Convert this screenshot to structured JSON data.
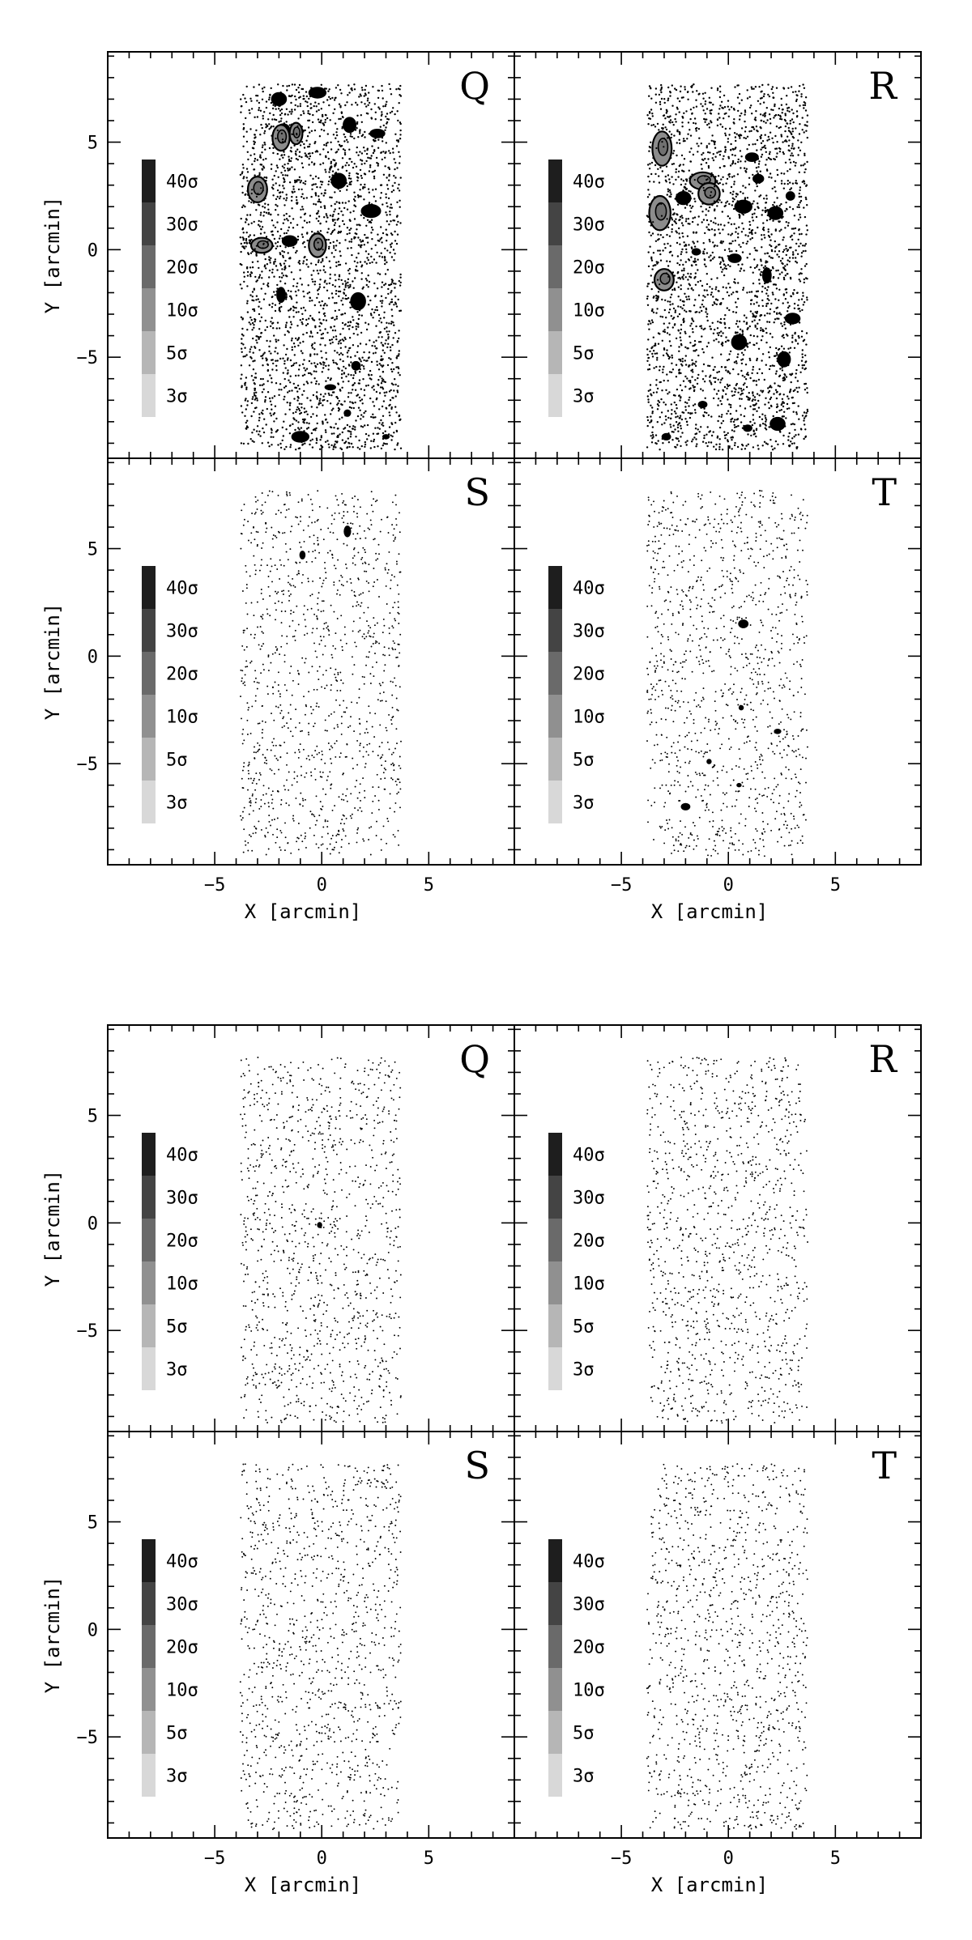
{
  "figure": {
    "colors": {
      "frame": "#000000",
      "dots": "#000000",
      "contour_fill": "#8c8c8c",
      "contour_line": "#000000"
    }
  },
  "chart_data": [
    {
      "type": "scatter",
      "panels": [
        {
          "label": "Q",
          "density": "high",
          "clumps": [
            [
              -2.0,
              7.0,
              0.35,
              0.3
            ],
            [
              -1.8,
              5.6,
              0.3,
              0.25
            ],
            [
              -1.9,
              5.2,
              0.4,
              0.6
            ],
            [
              -1.2,
              5.4,
              0.3,
              0.5
            ],
            [
              -0.2,
              7.3,
              0.4,
              0.25
            ],
            [
              1.3,
              5.8,
              0.3,
              0.35
            ],
            [
              2.6,
              5.4,
              0.35,
              0.2
            ],
            [
              -3.0,
              2.8,
              0.45,
              0.6
            ],
            [
              -2.8,
              0.2,
              0.5,
              0.35
            ],
            [
              -1.5,
              0.4,
              0.35,
              0.25
            ],
            [
              -0.2,
              0.2,
              0.4,
              0.55
            ],
            [
              0.8,
              3.2,
              0.35,
              0.35
            ],
            [
              2.3,
              1.8,
              0.45,
              0.3
            ],
            [
              -1.9,
              -2.1,
              0.2,
              0.35
            ],
            [
              1.7,
              -2.4,
              0.35,
              0.4
            ],
            [
              1.6,
              -5.4,
              0.2,
              0.2
            ],
            [
              0.4,
              -6.4,
              0.25,
              0.12
            ],
            [
              -1.0,
              -8.7,
              0.4,
              0.25
            ],
            [
              1.2,
              -7.6,
              0.15,
              0.15
            ],
            [
              3.0,
              -8.7,
              0.15,
              0.1
            ]
          ]
        },
        {
          "label": "R",
          "density": "high",
          "clumps": [
            [
              -3.1,
              4.7,
              0.45,
              0.8
            ],
            [
              -3.2,
              1.7,
              0.5,
              0.8
            ],
            [
              -2.1,
              2.4,
              0.35,
              0.3
            ],
            [
              -1.2,
              3.2,
              0.6,
              0.4
            ],
            [
              -0.9,
              2.6,
              0.5,
              0.5
            ],
            [
              -3.0,
              -1.4,
              0.45,
              0.5
            ],
            [
              0.7,
              2.0,
              0.4,
              0.3
            ],
            [
              2.2,
              1.7,
              0.35,
              0.3
            ],
            [
              2.9,
              2.5,
              0.2,
              0.2
            ],
            [
              1.1,
              4.3,
              0.3,
              0.2
            ],
            [
              1.4,
              3.3,
              0.25,
              0.2
            ],
            [
              0.3,
              -0.4,
              0.3,
              0.2
            ],
            [
              1.8,
              -1.2,
              0.2,
              0.35
            ],
            [
              3.0,
              -3.2,
              0.35,
              0.25
            ],
            [
              2.6,
              -5.1,
              0.3,
              0.35
            ],
            [
              0.5,
              -4.3,
              0.35,
              0.35
            ],
            [
              2.3,
              -8.1,
              0.35,
              0.3
            ],
            [
              0.9,
              -8.3,
              0.2,
              0.15
            ],
            [
              -2.9,
              -8.7,
              0.2,
              0.15
            ],
            [
              -1.2,
              -7.2,
              0.2,
              0.15
            ],
            [
              -1.5,
              -0.1,
              0.2,
              0.15
            ]
          ]
        },
        {
          "label": "S",
          "density": "low",
          "clumps": [
            [
              1.2,
              5.8,
              0.15,
              0.25
            ],
            [
              -0.9,
              4.7,
              0.12,
              0.18
            ]
          ]
        },
        {
          "label": "T",
          "density": "low",
          "clumps": [
            [
              0.7,
              1.5,
              0.22,
              0.18
            ],
            [
              2.3,
              -3.5,
              0.15,
              0.1
            ],
            [
              -2.0,
              -7.0,
              0.2,
              0.15
            ],
            [
              -0.9,
              -4.9,
              0.1,
              0.1
            ],
            [
              0.6,
              -2.4,
              0.1,
              0.1
            ],
            [
              0.5,
              -6.0,
              0.1,
              0.08
            ]
          ]
        }
      ]
    },
    {
      "type": "scatter",
      "panels": [
        {
          "label": "Q",
          "density": "low",
          "clumps": [
            [
              -0.1,
              -0.1,
              0.1,
              0.12
            ]
          ]
        },
        {
          "label": "R",
          "density": "low",
          "clumps": []
        },
        {
          "label": "S",
          "density": "low",
          "clumps": []
        },
        {
          "label": "T",
          "density": "low",
          "clumps": []
        }
      ]
    }
  ],
  "axes": {
    "xlabel": "X [arcmin]",
    "ylabel": "Y [arcmin]",
    "xlim": [
      -10,
      9
    ],
    "ylim": [
      -9.7,
      9.2
    ],
    "xticks": [
      -5,
      0,
      5
    ],
    "yticks": [
      5,
      0,
      -5
    ],
    "xtick_labels": [
      "−5",
      "0",
      "5"
    ],
    "ytick_labels": [
      "5",
      "0",
      "−5"
    ],
    "data_region": {
      "x": [
        -3.8,
        3.7
      ],
      "y": [
        -9.3,
        7.7
      ]
    }
  },
  "colorbar": {
    "levels": [
      {
        "label": "40σ",
        "color": "#1e1e1e"
      },
      {
        "label": "30σ",
        "color": "#444444"
      },
      {
        "label": "20σ",
        "color": "#6a6a6a"
      },
      {
        "label": "10σ",
        "color": "#909090"
      },
      {
        "label": "5σ",
        "color": "#b6b6b6"
      },
      {
        "label": "3σ",
        "color": "#d8d8d8"
      }
    ]
  }
}
